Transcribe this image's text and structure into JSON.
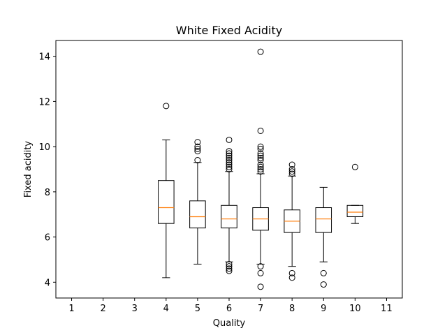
{
  "chart_data": {
    "type": "box",
    "title": "White Fixed Acidity",
    "xlabel": "Quality",
    "ylabel": "Fixed acidity",
    "xlim": [
      0.5,
      11.5
    ],
    "ylim": [
      3.3,
      14.7
    ],
    "x_ticks": [
      1,
      2,
      3,
      4,
      5,
      6,
      7,
      8,
      9,
      10,
      11
    ],
    "y_ticks": [
      4,
      6,
      8,
      10,
      12,
      14
    ],
    "grid": false,
    "colors": {
      "box": "#000000",
      "median": "#ff7f0e",
      "flier": "#000000"
    },
    "boxes": [
      {
        "position": 4,
        "whislo": 4.2,
        "q1": 6.6,
        "med": 7.3,
        "q3": 8.5,
        "whishi": 10.3,
        "fliers": [
          11.8
        ]
      },
      {
        "position": 5,
        "whislo": 4.8,
        "q1": 6.4,
        "med": 6.9,
        "q3": 7.6,
        "whishi": 9.3,
        "fliers": [
          9.4,
          9.8,
          9.9,
          10.0,
          10.2
        ]
      },
      {
        "position": 6,
        "whislo": 4.9,
        "q1": 6.4,
        "med": 6.8,
        "q3": 7.4,
        "whishi": 8.9,
        "fliers": [
          4.5,
          4.6,
          4.7,
          4.8,
          9.0,
          9.1,
          9.2,
          9.3,
          9.4,
          9.5,
          9.6,
          9.7,
          9.8,
          10.3
        ]
      },
      {
        "position": 7,
        "whislo": 4.8,
        "q1": 6.3,
        "med": 6.8,
        "q3": 7.3,
        "whishi": 8.8,
        "fliers": [
          3.8,
          4.4,
          4.7,
          8.9,
          9.0,
          9.1,
          9.2,
          9.4,
          9.5,
          9.6,
          9.7,
          9.9,
          10.0,
          10.7,
          14.2
        ]
      },
      {
        "position": 8,
        "whislo": 4.7,
        "q1": 6.2,
        "med": 6.7,
        "q3": 7.2,
        "whishi": 8.7,
        "fliers": [
          4.2,
          4.4,
          8.8,
          8.9,
          9.0,
          9.2
        ]
      },
      {
        "position": 9,
        "whislo": 4.9,
        "q1": 6.2,
        "med": 6.8,
        "q3": 7.3,
        "whishi": 8.2,
        "fliers": [
          3.9,
          4.4
        ]
      },
      {
        "position": 10,
        "whislo": 6.6,
        "q1": 6.9,
        "med": 7.1,
        "q3": 7.4,
        "whishi": 7.4,
        "fliers": [
          9.1
        ]
      }
    ]
  }
}
